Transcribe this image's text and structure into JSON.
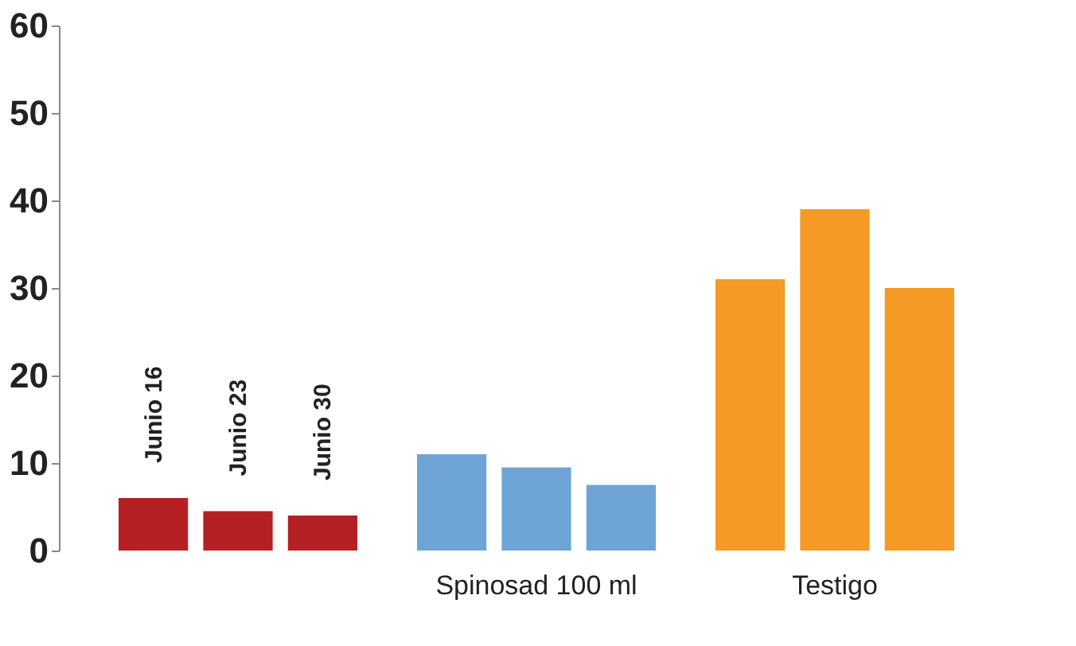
{
  "chart_data": {
    "type": "bar",
    "categories": [
      null,
      "Spinosad 100 ml",
      "Testigo"
    ],
    "series": [
      {
        "name": "Junio 16",
        "colors": [
          "#b52025",
          "#6fa5d6",
          "#f49a25"
        ],
        "values": [
          6,
          11,
          31
        ]
      },
      {
        "name": "Junio 23",
        "colors": [
          "#b52025",
          "#6fa5d6",
          "#f49a25"
        ],
        "values": [
          4.5,
          9.5,
          39
        ]
      },
      {
        "name": "Junio 30",
        "colors": [
          "#b52025",
          "#6fa5d6",
          "#f49a25"
        ],
        "values": [
          4,
          7.5,
          30
        ]
      }
    ],
    "ylim": [
      0,
      60
    ],
    "yticks": [
      0,
      10,
      20,
      30,
      40,
      50,
      60
    ],
    "grid": false
  }
}
